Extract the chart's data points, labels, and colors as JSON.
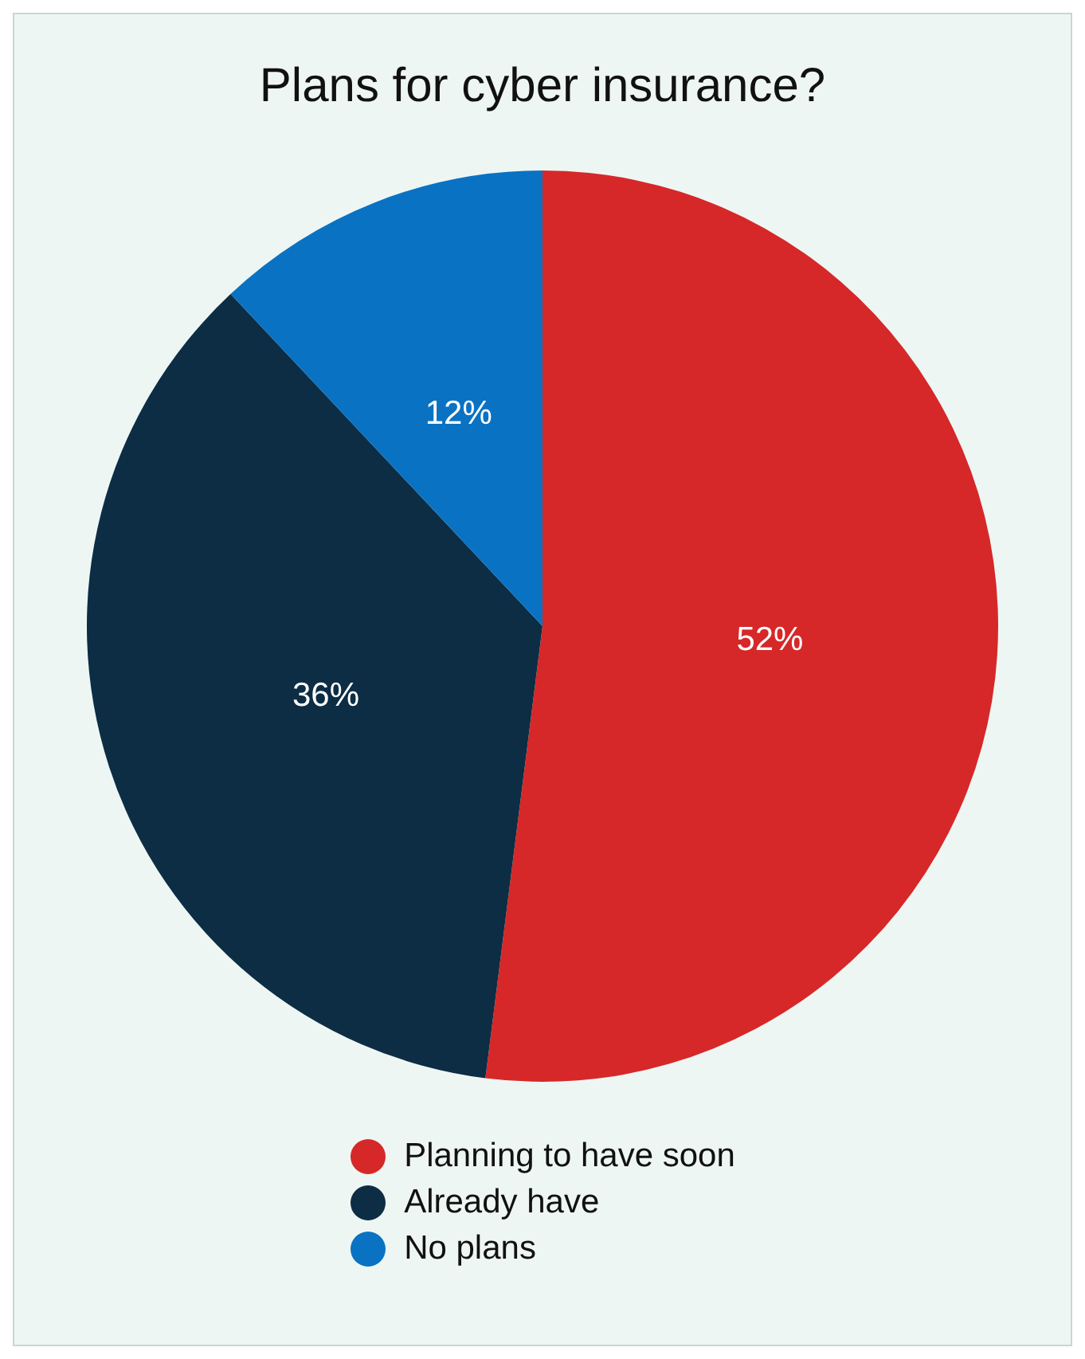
{
  "chart_data": {
    "type": "pie",
    "title": "Plans for cyber insurance?",
    "categories": [
      "Planning to have soon",
      "Already have",
      "No plans"
    ],
    "values": [
      52,
      36,
      12
    ],
    "colors": [
      "#d62828",
      "#0c2d44",
      "#0a72c2"
    ],
    "value_labels": [
      "52%",
      "36%",
      "12%"
    ],
    "legend": "bottom"
  }
}
